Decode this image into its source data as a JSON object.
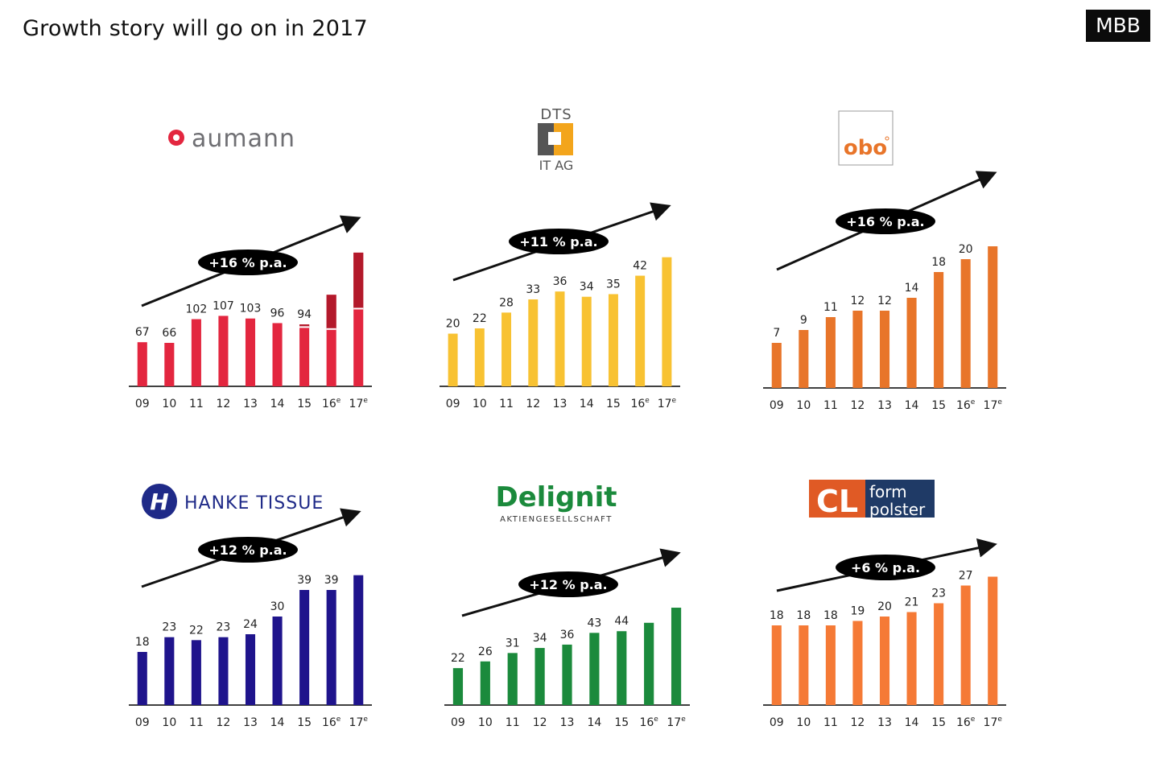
{
  "page": {
    "title": "Growth story will go on in 2017",
    "brand": "MBB"
  },
  "categories": [
    "09",
    "10",
    "11",
    "12",
    "13",
    "14",
    "15",
    "16e",
    "17e"
  ],
  "chart_data": [
    {
      "type": "bar",
      "company_logo_text": "aumann",
      "color": "#e3263f",
      "color_dark": "#b3192b",
      "categories": [
        "09",
        "10",
        "11",
        "12",
        "13",
        "14",
        "15",
        "16e",
        "17e"
      ],
      "values": [
        67,
        66,
        102,
        107,
        103,
        96,
        94,
        null,
        null
      ],
      "display_values": [
        67,
        66,
        102,
        107,
        103,
        96,
        94,
        139,
        203
      ],
      "stacked_top": [
        0,
        0,
        0,
        0,
        0,
        0,
        4,
        52,
        85
      ],
      "labels": [
        "67",
        "66",
        "102",
        "107",
        "103",
        "96",
        "94",
        "",
        ""
      ],
      "growth": "+16 % p.a.",
      "ylim": [
        0,
        220
      ]
    },
    {
      "type": "bar",
      "company_logo_text": [
        "DTS",
        "IT AG"
      ],
      "color": "#f8c232",
      "categories": [
        "09",
        "10",
        "11",
        "12",
        "13",
        "14",
        "15",
        "16e",
        "17e"
      ],
      "values": [
        20,
        22,
        28,
        33,
        36,
        34,
        35,
        42,
        null
      ],
      "display_values": [
        20,
        22,
        28,
        33,
        36,
        34,
        35,
        42,
        49
      ],
      "labels": [
        "20",
        "22",
        "28",
        "33",
        "36",
        "34",
        "35",
        "42",
        ""
      ],
      "growth": "+11 % p.a.",
      "ylim": [
        0,
        55
      ]
    },
    {
      "type": "bar",
      "company_logo_text": "obo",
      "color": "#e8752a",
      "categories": [
        "09",
        "10",
        "11",
        "12",
        "13",
        "14",
        "15",
        "16e",
        "17e"
      ],
      "values": [
        7,
        9,
        11,
        12,
        12,
        14,
        18,
        20,
        null
      ],
      "display_values": [
        7,
        9,
        11,
        12,
        12,
        14,
        18,
        20,
        22
      ],
      "labels": [
        "7",
        "9",
        "11",
        "12",
        "12",
        "14",
        "18",
        "20",
        ""
      ],
      "growth": "+16 % p.a.",
      "ylim": [
        0,
        24
      ]
    },
    {
      "type": "bar",
      "company_logo_text": "HANKE TISSUE",
      "color": "#1f148c",
      "categories": [
        "09",
        "10",
        "11",
        "12",
        "13",
        "14",
        "15",
        "16e",
        "17e"
      ],
      "values": [
        18,
        23,
        22,
        23,
        24,
        30,
        39,
        39,
        null
      ],
      "display_values": [
        18,
        23,
        22,
        23,
        24,
        30,
        39,
        39,
        44
      ],
      "labels": [
        "18",
        "23",
        "22",
        "23",
        "24",
        "30",
        "39",
        "39",
        ""
      ],
      "growth": "+12 % p.a.",
      "ylim": [
        0,
        48
      ]
    },
    {
      "type": "bar",
      "company_logo_text": [
        "Delignit",
        "AKTIENGESELLSCHAFT"
      ],
      "color": "#1b8a3c",
      "categories": [
        "09",
        "10",
        "11",
        "12",
        "13",
        "14",
        "15",
        "16e",
        "17e"
      ],
      "values": [
        22,
        26,
        31,
        34,
        36,
        43,
        44,
        null,
        null
      ],
      "display_values": [
        22,
        26,
        31,
        34,
        36,
        43,
        44,
        49,
        58
      ],
      "labels": [
        "22",
        "26",
        "31",
        "34",
        "36",
        "43",
        "44",
        "",
        ""
      ],
      "growth": "+12 % p.a.",
      "ylim": [
        0,
        70
      ]
    },
    {
      "type": "bar",
      "company_logo_text": [
        "form",
        "polster"
      ],
      "color": "#f57a36",
      "categories": [
        "09",
        "10",
        "11",
        "12",
        "13",
        "14",
        "15",
        "16e",
        "17e"
      ],
      "values": [
        18,
        18,
        18,
        19,
        20,
        21,
        23,
        27,
        null
      ],
      "display_values": [
        18,
        18,
        18,
        19,
        20,
        21,
        23,
        27,
        29
      ],
      "labels": [
        "18",
        "18",
        "18",
        "19",
        "20",
        "21",
        "23",
        "27",
        ""
      ],
      "growth": "+6 % p.a.",
      "ylim": [
        0,
        32
      ]
    }
  ]
}
